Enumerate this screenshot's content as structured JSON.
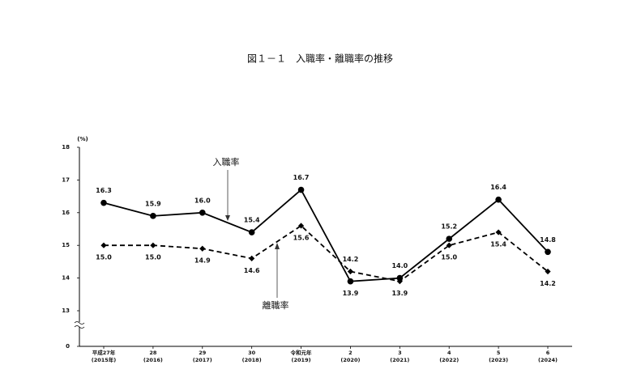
{
  "chart_data": {
    "type": "line",
    "title": "図１－１　入職率・離職率の推移",
    "y_unit": "(%)",
    "categories": [
      [
        "平成27年",
        "(2015年)"
      ],
      [
        "28",
        "(2016)"
      ],
      [
        "29",
        "(2017)"
      ],
      [
        "30",
        "(2018)"
      ],
      [
        "令和元年",
        "(2019)"
      ],
      [
        "2",
        "(2020)"
      ],
      [
        "3",
        "(2021)"
      ],
      [
        "4",
        "(2022)"
      ],
      [
        "5",
        "(2023)"
      ],
      [
        "6",
        "(2024)"
      ]
    ],
    "series": [
      {
        "name": "入職率",
        "color": "#000000",
        "marker": "circle",
        "dash": false,
        "values": [
          16.3,
          15.9,
          16.0,
          15.4,
          16.7,
          13.9,
          14.0,
          15.2,
          16.4,
          14.8
        ],
        "value_labels": [
          "16.3",
          "15.9",
          "16.0",
          "15.4",
          "16.7",
          "13.9",
          "14.0",
          "15.2",
          "16.4",
          "14.8"
        ]
      },
      {
        "name": "離職率",
        "color": "#000000",
        "marker": "diamond",
        "dash": true,
        "values": [
          15.0,
          15.0,
          14.9,
          14.6,
          15.6,
          14.2,
          13.9,
          15.0,
          15.4,
          14.2
        ],
        "value_labels": [
          "15.0",
          "15.0",
          "14.9",
          "14.6",
          "15.6",
          "14.2",
          "13.9",
          "15.0",
          "15.4",
          "14.2"
        ]
      }
    ],
    "ylim": [
      0,
      18
    ],
    "yticks": [
      0,
      13,
      14,
      15,
      16,
      17,
      18
    ],
    "axis_break": true
  }
}
